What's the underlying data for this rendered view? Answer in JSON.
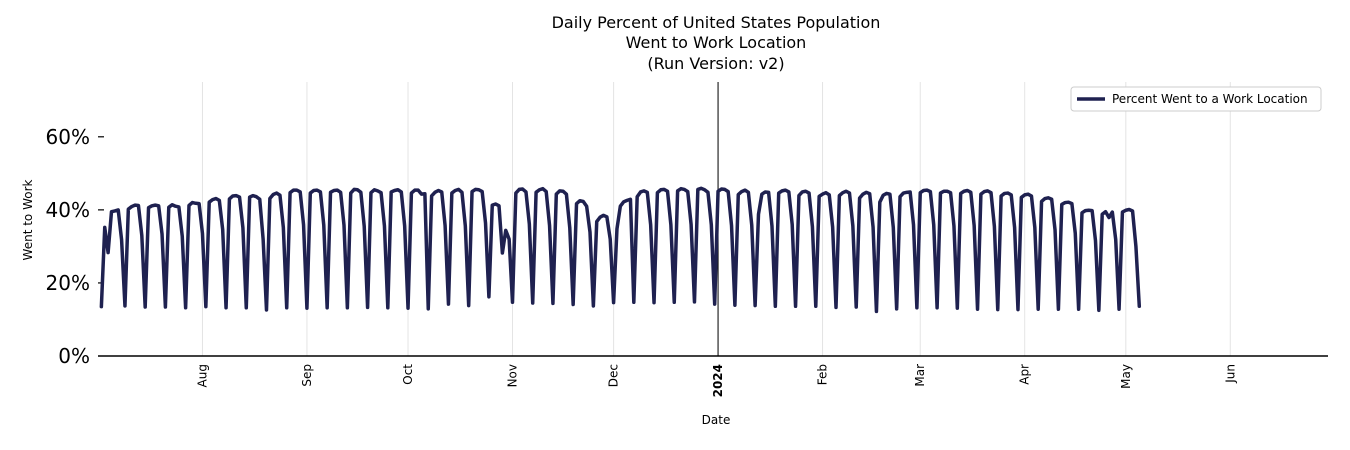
{
  "chart_data": {
    "type": "line",
    "title_lines": [
      "Daily Percent of United States Population",
      "Went to Work Location",
      "(Run Version: v2)"
    ],
    "xlabel": "Date",
    "ylabel": "Went to Work",
    "ylim": [
      0,
      75
    ],
    "y_ticks": [
      {
        "value": 0,
        "label": "0%"
      },
      {
        "value": 20,
        "label": "20%"
      },
      {
        "value": 40,
        "label": "40%"
      },
      {
        "value": 60,
        "label": "60%"
      }
    ],
    "x_range": [
      "2023-07-01",
      "2024-06-30"
    ],
    "x_ticks": [
      {
        "date": "2023-08-01",
        "label": "Aug",
        "bold": false
      },
      {
        "date": "2023-09-01",
        "label": "Sep",
        "bold": false
      },
      {
        "date": "2023-10-01",
        "label": "Oct",
        "bold": false
      },
      {
        "date": "2023-11-01",
        "label": "Nov",
        "bold": false
      },
      {
        "date": "2023-12-01",
        "label": "Dec",
        "bold": false
      },
      {
        "date": "2024-01-01",
        "label": "2024",
        "bold": true
      },
      {
        "date": "2024-02-01",
        "label": "Feb",
        "bold": false
      },
      {
        "date": "2024-03-01",
        "label": "Mar",
        "bold": false
      },
      {
        "date": "2024-04-01",
        "label": "Apr",
        "bold": false
      },
      {
        "date": "2024-05-01",
        "label": "May",
        "bold": false
      },
      {
        "date": "2024-06-01",
        "label": "Jun",
        "bold": false
      }
    ],
    "grid": {
      "vertical": true,
      "horizontal": false
    },
    "year_marker_date": "2024-01-01",
    "legend_position": "top-right",
    "series": [
      {
        "name": "Percent Went to a Work Location",
        "color": "#1f2150",
        "start_date": "2023-07-02",
        "values": [
          13.5,
          35.2,
          28.3,
          39.5,
          39.7,
          40.0,
          31.8,
          13.7,
          40.2,
          40.9,
          41.3,
          41.2,
          33.0,
          13.4,
          40.6,
          41.1,
          41.3,
          41.1,
          33.4,
          13.4,
          40.7,
          41.4,
          41.0,
          40.8,
          32.8,
          13.2,
          41.2,
          42.0,
          41.8,
          41.7,
          33.5,
          13.5,
          42.1,
          42.8,
          43.1,
          42.6,
          34.6,
          13.2,
          43.0,
          43.8,
          43.9,
          43.5,
          35.1,
          13.2,
          43.5,
          43.9,
          43.6,
          42.9,
          32.0,
          12.6,
          43.1,
          44.2,
          44.6,
          44.0,
          35.2,
          13.2,
          44.7,
          45.4,
          45.4,
          44.9,
          35.9,
          13.1,
          44.6,
          45.3,
          45.4,
          44.9,
          35.8,
          13.2,
          44.8,
          45.3,
          45.4,
          44.8,
          35.8,
          13.2,
          44.6,
          45.6,
          45.5,
          44.8,
          35.5,
          13.3,
          44.7,
          45.5,
          45.2,
          44.7,
          35.6,
          13.2,
          44.9,
          45.3,
          45.5,
          44.9,
          35.6,
          13.1,
          44.6,
          45.4,
          45.4,
          44.3,
          44.4,
          12.9,
          43.8,
          44.8,
          45.3,
          44.9,
          35.7,
          14.2,
          44.6,
          45.3,
          45.6,
          44.8,
          35.6,
          13.8,
          45.0,
          45.6,
          45.5,
          45.0,
          36.4,
          16.2,
          41.3,
          41.6,
          41.1,
          28.2,
          34.4,
          32.0,
          14.7,
          44.6,
          45.6,
          45.7,
          44.9,
          36.1,
          14.5,
          44.8,
          45.5,
          45.8,
          45.0,
          35.7,
          14.4,
          44.3,
          45.2,
          45.1,
          44.3,
          35.1,
          14.1,
          41.7,
          42.5,
          42.3,
          41.0,
          33.9,
          13.7,
          36.8,
          38.0,
          38.5,
          38.1,
          32.0,
          14.6,
          34.8,
          41.0,
          42.2,
          42.6,
          42.9,
          14.7,
          43.6,
          44.9,
          45.2,
          44.8,
          35.9,
          14.6,
          44.7,
          45.5,
          45.6,
          45.1,
          35.9,
          14.7,
          45.2,
          45.8,
          45.6,
          45.0,
          36.0,
          14.8,
          45.6,
          45.9,
          45.5,
          44.8,
          35.9,
          14.2,
          45.1,
          45.7,
          45.6,
          45.0,
          35.7,
          13.9,
          44.2,
          45.0,
          45.4,
          44.8,
          35.8,
          13.8,
          38.8,
          44.3,
          44.9,
          44.8,
          35.6,
          13.6,
          44.6,
          45.2,
          45.4,
          44.9,
          36.0,
          13.6,
          43.9,
          44.9,
          45.1,
          44.6,
          35.4,
          13.6,
          43.7,
          44.3,
          44.7,
          44.1,
          35.3,
          13.3,
          43.9,
          44.7,
          45.1,
          44.6,
          35.6,
          13.4,
          43.2,
          44.3,
          44.8,
          44.4,
          35.3,
          12.2,
          42.1,
          44.0,
          44.5,
          44.3,
          35.2,
          12.9,
          43.6,
          44.6,
          44.8,
          44.9,
          35.9,
          13.2,
          44.7,
          45.3,
          45.4,
          45.0,
          35.9,
          13.2,
          44.6,
          45.1,
          45.1,
          44.7,
          35.6,
          13.1,
          44.5,
          45.1,
          45.3,
          44.8,
          35.7,
          12.8,
          44.3,
          45.0,
          45.2,
          44.7,
          35.5,
          12.7,
          43.8,
          44.5,
          44.6,
          44.1,
          35.2,
          12.7,
          43.4,
          44.1,
          44.3,
          43.8,
          35.2,
          12.8,
          42.3,
          43.1,
          43.3,
          42.9,
          34.5,
          12.8,
          41.5,
          42.0,
          42.1,
          41.7,
          33.6,
          12.8,
          39.2,
          39.8,
          39.9,
          39.8,
          31.6,
          12.5,
          38.8,
          39.5,
          37.9,
          39.4,
          31.9,
          12.8,
          39.4,
          39.9,
          40.1,
          39.7,
          30.0,
          13.6
        ]
      }
    ]
  }
}
